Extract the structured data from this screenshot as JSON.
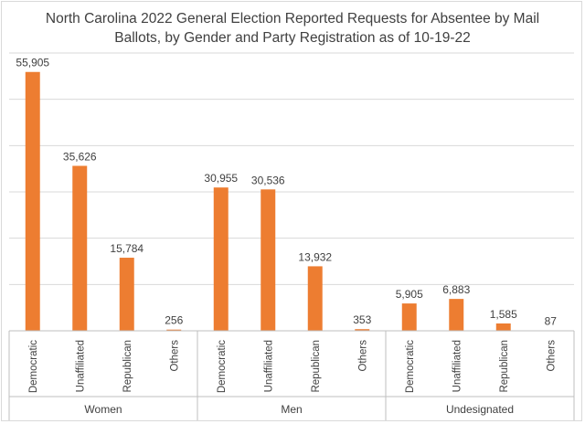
{
  "chart_data": {
    "type": "bar",
    "title_line1": "North Carolina 2022 General Election Reported Requests for Absentee by Mail",
    "title_line2": "Ballots, by Gender and Party Registration as of 10-19-22",
    "title": "North Carolina 2022 General Election Reported Requests for Absentee by Mail Ballots, by Gender and Party Registration as of 10-19-22",
    "xlabel": "",
    "ylabel": "",
    "ylim": [
      0,
      60000
    ],
    "y_gridlines": [
      0,
      10000,
      20000,
      30000,
      40000,
      50000,
      60000
    ],
    "y_tick_labels_shown": false,
    "bar_color": "#ed7d31",
    "groups": [
      {
        "name": "Women",
        "bars": [
          {
            "category": "Democratic",
            "value": 55905,
            "label": "55,905"
          },
          {
            "category": "Unaffiliated",
            "value": 35626,
            "label": "35,626"
          },
          {
            "category": "Republican",
            "value": 15784,
            "label": "15,784"
          },
          {
            "category": "Others",
            "value": 256,
            "label": "256"
          }
        ]
      },
      {
        "name": "Men",
        "bars": [
          {
            "category": "Democratic",
            "value": 30955,
            "label": "30,955"
          },
          {
            "category": "Unaffiliated",
            "value": 30536,
            "label": "30,536"
          },
          {
            "category": "Republican",
            "value": 13932,
            "label": "13,932"
          },
          {
            "category": "Others",
            "value": 353,
            "label": "353"
          }
        ]
      },
      {
        "name": "Undesignated",
        "bars": [
          {
            "category": "Democratic",
            "value": 5905,
            "label": "5,905"
          },
          {
            "category": "Unaffiliated",
            "value": 6883,
            "label": "6,883"
          },
          {
            "category": "Republican",
            "value": 1585,
            "label": "1,585"
          },
          {
            "category": "Others",
            "value": 87,
            "label": "87"
          }
        ]
      }
    ]
  }
}
